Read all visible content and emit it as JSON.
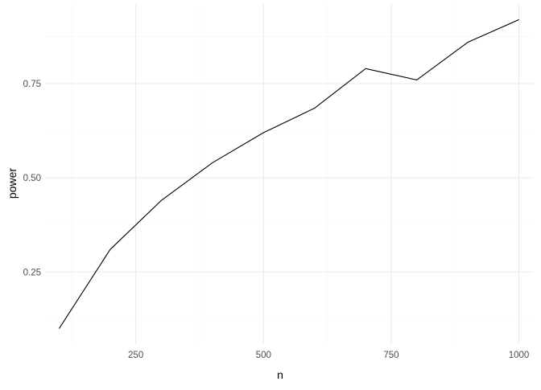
{
  "chart_data": {
    "type": "line",
    "title": "",
    "xlabel": "n",
    "ylabel": "power",
    "xlim": [
      72.5,
      1027.5
    ],
    "ylim": [
      0.0585,
      0.9615
    ],
    "x_ticks": [
      250,
      500,
      750,
      1000
    ],
    "x_tick_labels": [
      "250",
      "500",
      "750",
      "1000"
    ],
    "y_ticks": [
      0.25,
      0.5,
      0.75
    ],
    "y_tick_labels": [
      "0.25",
      "0.50",
      "0.75"
    ],
    "grid": true,
    "legend": "none",
    "series": [
      {
        "x": [
          100,
          200,
          300,
          400,
          500,
          600,
          700,
          800,
          900,
          1000
        ],
        "y": [
          0.1,
          0.31,
          0.44,
          0.54,
          0.62,
          0.685,
          0.79,
          0.76,
          0.86,
          0.92
        ]
      }
    ],
    "colors": {
      "line": "#000000",
      "grid_major": "#ebebeb",
      "grid_minor": "#f4f4f4",
      "background": "#ffffff"
    }
  }
}
